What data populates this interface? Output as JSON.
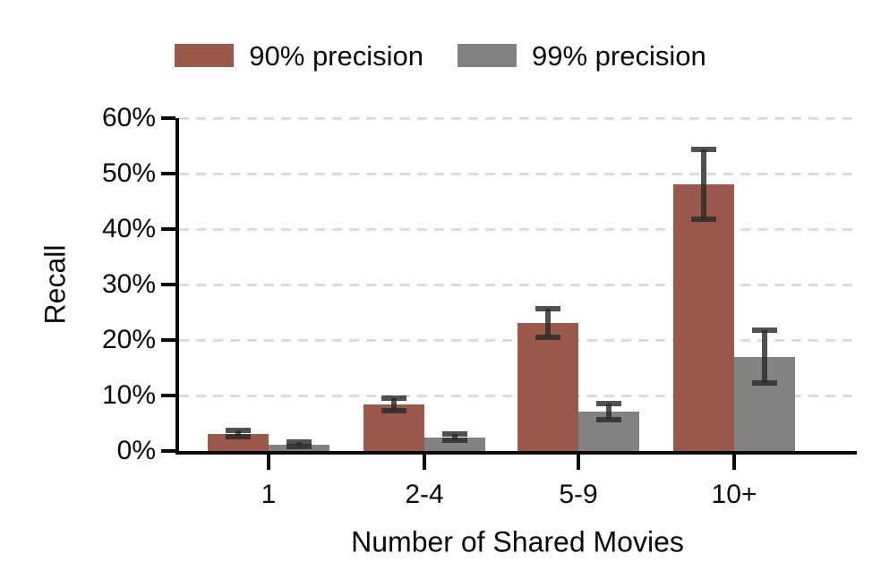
{
  "figure": {
    "background": "#ffffff",
    "text_color": "#0a0a0a",
    "gridline_color": "#dcdcdc",
    "axis_color": "#0a0a0a"
  },
  "legend": {
    "items": [
      {
        "label": "90% precision",
        "color": "#9a594b",
        "swatch": "brown-swatch"
      },
      {
        "label": "99% precision",
        "color": "#828282",
        "swatch": "gray-swatch"
      }
    ]
  },
  "chart_data": {
    "type": "bar",
    "title": "",
    "xlabel": "Number of Shared Movies",
    "ylabel": "Recall",
    "categories": [
      "1",
      "2-4",
      "5-9",
      "10+"
    ],
    "series": [
      {
        "name": "90% precision",
        "color": "#9a594b",
        "values": [
          3.1,
          8.4,
          23.1,
          48.0
        ],
        "errors": [
          0.55,
          1.1,
          2.6,
          6.3
        ]
      },
      {
        "name": "99% precision",
        "color": "#828282",
        "values": [
          1.2,
          2.5,
          7.1,
          17.0
        ],
        "errors": [
          0.4,
          0.5,
          1.5,
          4.7
        ]
      }
    ],
    "error_bar_color": "#2b2b2b",
    "ylim": [
      0,
      60
    ],
    "y_tick_step": 10,
    "y_tick_labels": [
      "0%",
      "10%",
      "20%",
      "30%",
      "40%",
      "50%",
      "60%"
    ],
    "grid": "horizontal-dashed",
    "legend_position": "top-center"
  }
}
